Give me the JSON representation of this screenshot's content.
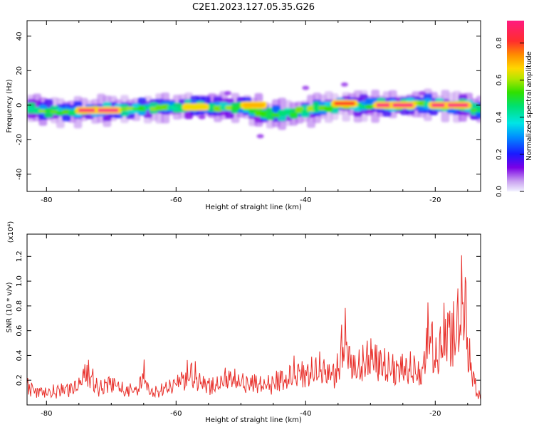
{
  "figure_title": "C2E1.2023.127.05.35.G26",
  "chart_data": [
    {
      "type": "heatmap",
      "xlabel": "Height of straight line (km)",
      "ylabel": "Frequency (Hz)",
      "xlim": [
        -83,
        -13
      ],
      "ylim": [
        -50,
        49
      ],
      "xticks": [
        -80,
        -60,
        -40,
        -20
      ],
      "xtick_labels": [
        "-80",
        "-60",
        "-40",
        "-20"
      ],
      "yticks": [
        -40,
        -20,
        0,
        20,
        40
      ],
      "ytick_labels": [
        "-40",
        "-20",
        "0",
        "20",
        "40"
      ],
      "colorbar": {
        "label": "Normalized spectral amplitude",
        "range": [
          0,
          0.92
        ],
        "ticks": [
          0.0,
          0.2,
          0.4,
          0.6,
          0.8
        ],
        "tick_labels": [
          "0.0",
          "0.2",
          "0.4",
          "0.6",
          "0.8"
        ]
      },
      "band_center_hz": [
        [
          -83,
          -2
        ],
        [
          -78,
          -4
        ],
        [
          -72,
          -3
        ],
        [
          -65,
          -2
        ],
        [
          -58,
          -1
        ],
        [
          -50,
          -1
        ],
        [
          -46,
          -5
        ],
        [
          -43,
          -5
        ],
        [
          -40,
          -3
        ],
        [
          -35,
          0
        ],
        [
          -30,
          0
        ],
        [
          -25,
          0
        ],
        [
          -20,
          0
        ],
        [
          -15,
          -1
        ],
        [
          -14,
          -3
        ]
      ],
      "peaks": [
        {
          "x": -73.5,
          "y": -3,
          "v": 0.9
        },
        {
          "x": -70.5,
          "y": -3,
          "v": 0.92
        },
        {
          "x": -57,
          "y": -1,
          "v": 0.65
        },
        {
          "x": -48,
          "y": 0,
          "v": 0.7
        },
        {
          "x": -34,
          "y": 1,
          "v": 0.8
        },
        {
          "x": -27.5,
          "y": 0,
          "v": 0.92
        },
        {
          "x": -25,
          "y": 0,
          "v": 0.92
        },
        {
          "x": -19,
          "y": 0,
          "v": 0.92
        },
        {
          "x": -16.5,
          "y": 0,
          "v": 0.92
        }
      ],
      "outliers": [
        {
          "x": -34,
          "y": 12
        },
        {
          "x": -40,
          "y": 10
        },
        {
          "x": -52,
          "y": 7
        },
        {
          "x": -47,
          "y": -18
        },
        {
          "x": -22,
          "y": 7
        },
        {
          "x": -56,
          "y": -7
        }
      ]
    },
    {
      "type": "line",
      "xlabel": "Height of straight line (km)",
      "ylabel": "SNR (10 * v/v)",
      "yscale_label": "(x10⁴)",
      "xlim": [
        -83,
        -13
      ],
      "ylim": [
        0,
        1.38
      ],
      "xticks": [
        -80,
        -60,
        -40,
        -20
      ],
      "xtick_labels": [
        "-80",
        "-60",
        "-40",
        "-20"
      ],
      "yticks": [
        0.2,
        0.4,
        0.6,
        0.8,
        1.0,
        1.2
      ],
      "ytick_labels": [
        "0.2",
        "0.4",
        "0.6",
        "0.8",
        "1.0",
        "1.2"
      ],
      "series": [
        {
          "color": "#e8302b",
          "x": [
            -83,
            -80,
            -77,
            -75,
            -74,
            -72,
            -70,
            -68,
            -66,
            -65,
            -64,
            -62,
            -60,
            -58,
            -56,
            -54,
            -52,
            -50,
            -48,
            -46,
            -44,
            -43,
            -42,
            -40,
            -38,
            -36,
            -35,
            -34,
            -33,
            -32,
            -30,
            -28,
            -26,
            -24,
            -22,
            -21,
            -20,
            -19,
            -18,
            -17,
            -16,
            -15.5,
            -15,
            -14.5,
            -14,
            -13.5
          ],
          "y": [
            0.2,
            0.12,
            0.17,
            0.2,
            0.4,
            0.17,
            0.27,
            0.15,
            0.15,
            0.35,
            0.12,
            0.15,
            0.25,
            0.35,
            0.25,
            0.2,
            0.3,
            0.25,
            0.25,
            0.22,
            0.3,
            0.25,
            0.35,
            0.35,
            0.4,
            0.35,
            0.4,
            0.8,
            0.45,
            0.4,
            0.55,
            0.45,
            0.4,
            0.4,
            0.35,
            0.9,
            0.5,
            0.7,
            0.9,
            0.8,
            1.1,
            1.35,
            0.7,
            0.4,
            0.3,
            0.1
          ]
        }
      ]
    }
  ]
}
